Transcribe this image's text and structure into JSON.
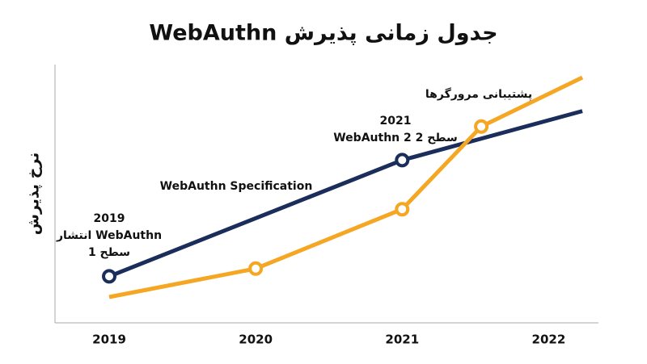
{
  "chart_data": {
    "type": "line",
    "title": "جدول زمانی پذیرش WebAuthn",
    "y_label": "نرخ پذیرش",
    "xlim": [
      2018.63,
      2022.34
    ],
    "xticks": [
      2019,
      2020,
      2021,
      2022
    ],
    "ylim": [
      0,
      100
    ],
    "series": [
      {
        "name": "WebAuthn Specification",
        "color": "#1b2d5b",
        "x": [
          2019,
          2021,
          2022.23
        ],
        "values": [
          18,
          63,
          82
        ],
        "marker_indices": [
          0,
          1
        ]
      },
      {
        "name": "پشتیبانی مرورگرها",
        "color": "#f5a623",
        "x": [
          2019,
          2020,
          2021,
          2021.54,
          2022.23
        ],
        "values": [
          10,
          21,
          44,
          76,
          95
        ],
        "marker_indices": [
          1,
          2,
          3
        ]
      }
    ],
    "annotations": [
      {
        "lines": [
          "2019",
          "انتشار WebAuthn",
          "سطح 1"
        ]
      },
      {
        "lines": [
          "2021",
          "WebAuthn 2 سطح 2"
        ]
      }
    ]
  }
}
